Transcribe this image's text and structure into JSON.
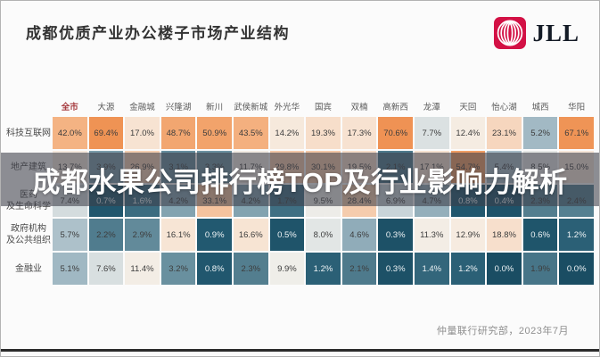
{
  "slide": {
    "title": "成都优质产业办公楼子市场产业结构",
    "source_note": "仲量联行研究部，2023年7月"
  },
  "logo": {
    "brand_text": "JLL",
    "icon": "jll-rings-icon",
    "icon_bg_color": "#d31145",
    "text_color": "#141b26"
  },
  "overlay": {
    "text": "成都水果公司排行榜TOP及行业影响力解析",
    "bg_color": "rgba(60,62,73,0.58)",
    "text_color": "#ffffff"
  },
  "chart_data": {
    "type": "heatmap",
    "title": "成都优质产业办公楼子市场产业结构",
    "unit": "%",
    "legend_position": "none",
    "grid": "off",
    "columns": [
      "全市",
      "大源",
      "金融城",
      "兴隆湖",
      "新川",
      "武侯新城",
      "外光华",
      "国宾",
      "双楠",
      "高新西",
      "龙潭",
      "天回",
      "怡心湖",
      "城西",
      "华阳"
    ],
    "highlight_column": "全市",
    "highlight_column_color": "#a63b3f",
    "rows": [
      {
        "label": "科技互联网",
        "values": [
          42.0,
          69.4,
          17.0,
          48.7,
          50.9,
          43.5,
          14.2,
          19.3,
          17.3,
          70.6,
          7.7,
          12.4,
          23.1,
          5.2,
          67.1
        ]
      },
      {
        "label": "地产建筑",
        "values": [
          13.7,
          3.9,
          26.9,
          3.1,
          3.3,
          11.7,
          29.8,
          30.1,
          19.5,
          2.1,
          17.1,
          54.7,
          5.4,
          8.5,
          15.0
        ]
      },
      {
        "label": "医药\n及生命科学",
        "values": [
          7.4,
          0.7,
          1.6,
          4.2,
          33.1,
          4.2,
          1.7,
          9.5,
          28.4,
          6.9,
          4.7,
          0.8,
          0.4,
          2.3,
          2.4
        ]
      },
      {
        "label": "政府机构\n及公共组织",
        "values": [
          5.7,
          2.2,
          2.9,
          16.1,
          0.9,
          16.6,
          0.5,
          8.0,
          4.6,
          0.3,
          11.3,
          12.9,
          18.8,
          0.6,
          1.2
        ]
      },
      {
        "label": "金融业",
        "values": [
          5.1,
          7.6,
          11.4,
          3.2,
          0.8,
          2.3,
          9.9,
          1.2,
          2.1,
          0.3,
          1.4,
          1.2,
          0.0,
          1.9,
          0.0
        ]
      }
    ],
    "color_scale": {
      "low_color": "#1a4d63",
      "mid_color": "#f0eee9",
      "high_color": "#ef9354",
      "note": "diverging scale: low values teal, ~10% near-white, high values orange"
    }
  }
}
